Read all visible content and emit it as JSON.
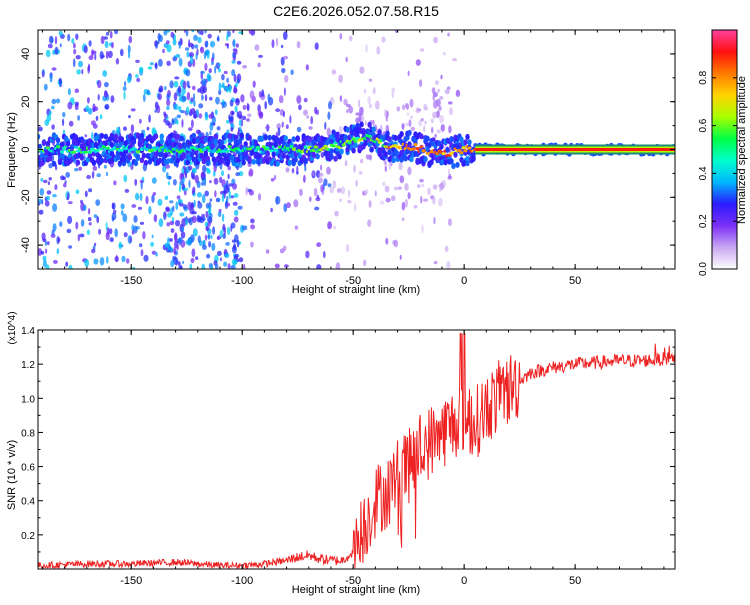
{
  "title": "C2E6.2026.052.07.58.R15",
  "chart_data": [
    {
      "type": "heatmap",
      "title": "C2E6.2026.052.07.58.R15",
      "xlabel": "Height of straight line (km)",
      "ylabel": "Frequency (Hz)",
      "xlim": [
        -192,
        95
      ],
      "ylim": [
        -50,
        50
      ],
      "xticks": [
        -150,
        -100,
        -50,
        0,
        50
      ],
      "yticks": [
        -40,
        -20,
        0,
        20,
        40
      ],
      "ridge": {
        "x": [
          -192,
          -170,
          -150,
          -120,
          -100,
          -80,
          -70,
          -60,
          -50,
          -45,
          -40,
          -35,
          -30,
          -22,
          -18,
          -15,
          -10,
          -5,
          0,
          5,
          10,
          20,
          50,
          95
        ],
        "freq": [
          0,
          0,
          0,
          0,
          0,
          0,
          0,
          1,
          4,
          5,
          4,
          2,
          1,
          1,
          0,
          -1,
          -2,
          -1,
          0,
          0,
          0,
          0,
          0,
          0
        ]
      },
      "colorbar": {
        "label": "Normalized spectral amplitude",
        "range": [
          0,
          1
        ],
        "ticks": [
          "0.0",
          "0.2",
          "0.4",
          "0.6",
          "0.8"
        ],
        "colors": [
          "#ffffff",
          "#c9a6f2",
          "#7b2ff7",
          "#2a1cff",
          "#00b7ff",
          "#00ffcc",
          "#00ff44",
          "#a8ff00",
          "#ffd400",
          "#ff7a00",
          "#ff1010",
          "#ff3fa0"
        ]
      }
    },
    {
      "type": "line",
      "xlabel": "Height of straight line (km)",
      "ylabel": "SNR (10 * v/v)",
      "yscale_label": "(x10^4)",
      "xlim": [
        -192,
        95
      ],
      "ylim": [
        0,
        1.4
      ],
      "xticks": [
        -150,
        -100,
        -50,
        0,
        50
      ],
      "yticks": [
        0.2,
        0.4,
        0.6,
        0.8,
        1.0,
        1.2,
        1.4
      ],
      "color": "#ee2222",
      "x": [
        -192,
        -170,
        -150,
        -130,
        -110,
        -100,
        -90,
        -80,
        -75,
        -70,
        -65,
        -60,
        -55,
        -50,
        -45,
        -40,
        -35,
        -30,
        -25,
        -20,
        -15,
        -10,
        -5,
        0,
        5,
        10,
        15,
        20,
        25,
        30,
        40,
        50,
        60,
        70,
        80,
        90,
        95
      ],
      "y": [
        0.02,
        0.03,
        0.03,
        0.04,
        0.02,
        0.02,
        0.03,
        0.05,
        0.07,
        0.08,
        0.06,
        0.05,
        0.05,
        0.1,
        0.25,
        0.4,
        0.45,
        0.55,
        0.6,
        0.7,
        0.75,
        0.8,
        0.85,
        0.9,
        0.85,
        0.95,
        1.0,
        1.05,
        1.1,
        1.15,
        1.18,
        1.2,
        1.21,
        1.22,
        1.22,
        1.23,
        1.24
      ]
    }
  ]
}
